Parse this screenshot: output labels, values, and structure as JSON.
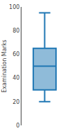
{
  "chart_data": {
    "type": "box",
    "ylabel": "Examination Marks",
    "whisker_low": 20,
    "q1": 30,
    "median": 50,
    "q3": 65,
    "whisker_high": 95,
    "ylim": [
      0,
      100
    ],
    "yticks": [
      0,
      20,
      40,
      60,
      80,
      100
    ],
    "grid": false,
    "tick_labels": "y"
  }
}
